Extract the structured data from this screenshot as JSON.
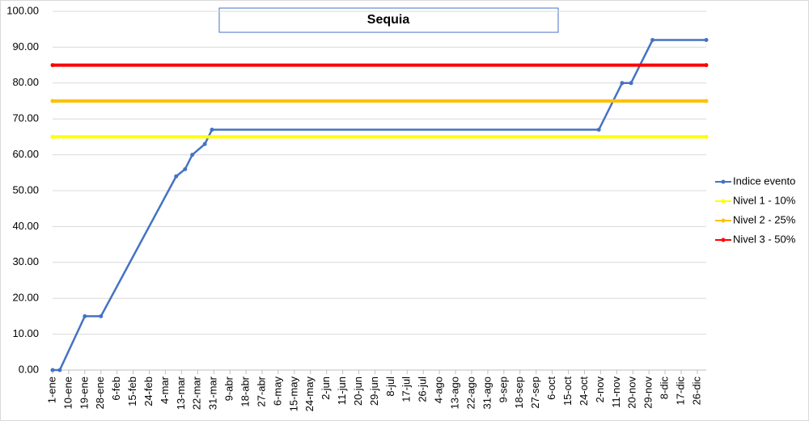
{
  "chart_data": {
    "type": "line",
    "title": "Sequia",
    "xlim": [
      1,
      366
    ],
    "xticks": [
      {
        "value": 1,
        "label": "1-ene"
      },
      {
        "value": 10,
        "label": "10-ene"
      },
      {
        "value": 19,
        "label": "19-ene"
      },
      {
        "value": 28,
        "label": "28-ene"
      },
      {
        "value": 37,
        "label": "6-feb"
      },
      {
        "value": 46,
        "label": "15-feb"
      },
      {
        "value": 55,
        "label": "24-feb"
      },
      {
        "value": 64,
        "label": "4-mar"
      },
      {
        "value": 73,
        "label": "13-mar"
      },
      {
        "value": 82,
        "label": "22-mar"
      },
      {
        "value": 91,
        "label": "31-mar"
      },
      {
        "value": 100,
        "label": "9-abr"
      },
      {
        "value": 109,
        "label": "18-abr"
      },
      {
        "value": 118,
        "label": "27-abr"
      },
      {
        "value": 127,
        "label": "6-may"
      },
      {
        "value": 136,
        "label": "15-may"
      },
      {
        "value": 145,
        "label": "24-may"
      },
      {
        "value": 154,
        "label": "2-jun"
      },
      {
        "value": 163,
        "label": "11-jun"
      },
      {
        "value": 172,
        "label": "20-jun"
      },
      {
        "value": 181,
        "label": "29-jun"
      },
      {
        "value": 190,
        "label": "8-jul"
      },
      {
        "value": 199,
        "label": "17-jul"
      },
      {
        "value": 208,
        "label": "26-jul"
      },
      {
        "value": 217,
        "label": "4-ago"
      },
      {
        "value": 226,
        "label": "13-ago"
      },
      {
        "value": 235,
        "label": "22-ago"
      },
      {
        "value": 244,
        "label": "31-ago"
      },
      {
        "value": 253,
        "label": "9-sep"
      },
      {
        "value": 262,
        "label": "18-sep"
      },
      {
        "value": 271,
        "label": "27-sep"
      },
      {
        "value": 280,
        "label": "6-oct"
      },
      {
        "value": 289,
        "label": "15-oct"
      },
      {
        "value": 298,
        "label": "24-oct"
      },
      {
        "value": 307,
        "label": "2-nov"
      },
      {
        "value": 316,
        "label": "11-nov"
      },
      {
        "value": 325,
        "label": "20-nov"
      },
      {
        "value": 334,
        "label": "29-nov"
      },
      {
        "value": 343,
        "label": "8-dic"
      },
      {
        "value": 352,
        "label": "17-dic"
      },
      {
        "value": 361,
        "label": "26-dic"
      }
    ],
    "ylim": [
      0,
      100
    ],
    "yticks": [
      {
        "value": 0,
        "label": "0.00"
      },
      {
        "value": 10,
        "label": "10.00"
      },
      {
        "value": 20,
        "label": "20.00"
      },
      {
        "value": 30,
        "label": "30.00"
      },
      {
        "value": 40,
        "label": "40.00"
      },
      {
        "value": 50,
        "label": "50.00"
      },
      {
        "value": 60,
        "label": "60.00"
      },
      {
        "value": 70,
        "label": "70.00"
      },
      {
        "value": 80,
        "label": "80.00"
      },
      {
        "value": 90,
        "label": "90.00"
      },
      {
        "value": 100,
        "label": "100.00"
      }
    ],
    "grid": true,
    "legend": "right",
    "series": [
      {
        "name": "Indice evento",
        "color": "#4472c4",
        "x": [
          1,
          5,
          19,
          28,
          70,
          75,
          79,
          86,
          90,
          306,
          319,
          324,
          336,
          366
        ],
        "values": [
          0,
          0,
          15,
          15,
          54,
          56,
          60,
          63,
          67,
          67,
          80,
          80,
          92,
          92
        ]
      },
      {
        "name": "Nivel 1 - 10%",
        "color": "#ffff00",
        "x": [
          1,
          366
        ],
        "values": [
          65,
          65
        ]
      },
      {
        "name": "Nivel 2 - 25%",
        "color": "#ffc000",
        "x": [
          1,
          366
        ],
        "values": [
          75,
          75
        ]
      },
      {
        "name": "Nivel 3 - 50%",
        "color": "#ff0000",
        "x": [
          1,
          366
        ],
        "values": [
          85,
          85
        ]
      }
    ]
  }
}
